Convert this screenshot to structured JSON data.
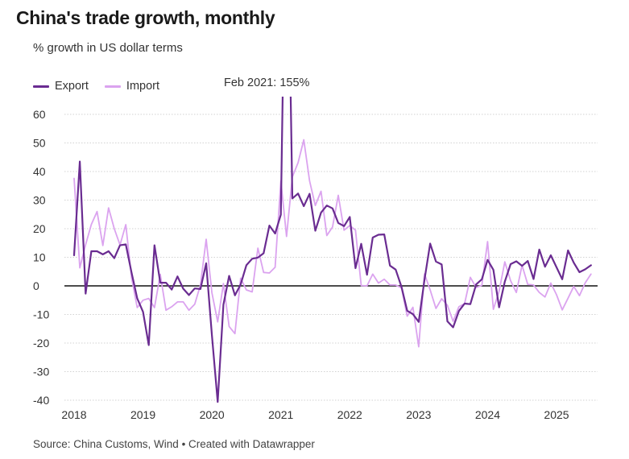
{
  "header": {
    "title": "China's trade growth, monthly",
    "subtitle": "% growth in US dollar terms"
  },
  "annotation": "Feb 2021: 155%",
  "footer": "Source: China Customs, Wind • Created with Datawrapper",
  "colors": {
    "export": "#6a2c91",
    "import": "#dba3ef",
    "grid": "#d2d2d2",
    "zero": "#111111"
  },
  "chart_data": {
    "type": "line",
    "title": "China's trade growth, monthly",
    "subtitle": "% growth in US dollar terms",
    "xlabel": "",
    "ylabel": "",
    "ylim": [
      -40,
      60
    ],
    "xlim": [
      "2018-01",
      "2025-12"
    ],
    "grid": true,
    "legend_position": "top-left",
    "y_ticks": [
      -40,
      -30,
      -20,
      -10,
      0,
      10,
      20,
      30,
      40,
      50,
      60
    ],
    "x_ticks": [
      "2018",
      "2019",
      "2020",
      "2021",
      "2022",
      "2023",
      "2024",
      "2025"
    ],
    "x_start": "2018-01",
    "x_step": "month",
    "series": [
      {
        "name": "Export",
        "values": [
          10.7,
          43.5,
          -2.7,
          12.1,
          12.1,
          11.0,
          12.1,
          9.7,
          14.2,
          14.5,
          4.7,
          -4.4,
          -9.1,
          -20.7,
          14.2,
          1.1,
          1.1,
          -1.3,
          3.3,
          -1.0,
          -3.2,
          -0.9,
          -1.1,
          7.9,
          -17.2,
          -40.6,
          -6.6,
          3.5,
          -3.3,
          0.5,
          7.2,
          9.5,
          9.9,
          11.4,
          21.1,
          18.3,
          24.9,
          154.9,
          30.6,
          32.3,
          27.9,
          32.2,
          19.3,
          25.6,
          28.1,
          27.1,
          22.0,
          20.9,
          24.1,
          6.2,
          14.7,
          3.9,
          16.9,
          17.9,
          18.0,
          7.1,
          5.7,
          -0.3,
          -8.7,
          -9.9,
          -12.6,
          2.0,
          14.8,
          8.5,
          7.5,
          -12.4,
          -14.5,
          -8.8,
          -6.2,
          -6.4,
          0.5,
          2.3,
          9.1,
          5.6,
          -7.5,
          1.5,
          7.6,
          8.6,
          7.0,
          8.7,
          2.4,
          12.7,
          6.7,
          10.7,
          6.5,
          2.3,
          12.4,
          8.1,
          4.8,
          5.8,
          7.2
        ]
      },
      {
        "name": "Import",
        "values": [
          37.6,
          6.3,
          14.4,
          21.5,
          26.0,
          14.1,
          27.3,
          20.0,
          14.3,
          21.4,
          3.0,
          -7.6,
          -5.0,
          -4.4,
          -7.6,
          4.0,
          -8.5,
          -7.3,
          -5.6,
          -5.6,
          -8.5,
          -6.4,
          0.3,
          16.3,
          -2.4,
          -12.6,
          0.8,
          -14.2,
          -16.7,
          2.7,
          -1.4,
          -2.1,
          13.2,
          4.7,
          4.5,
          6.5,
          36.7,
          17.3,
          38.1,
          43.1,
          51.1,
          36.7,
          28.1,
          33.1,
          17.6,
          20.6,
          31.7,
          19.5,
          21.1,
          19.5,
          0.1,
          0.0,
          4.1,
          1.0,
          2.3,
          0.3,
          0.3,
          -0.7,
          -10.6,
          -7.5,
          -21.3,
          4.2,
          -1.4,
          -7.9,
          -4.5,
          -6.8,
          -12.4,
          -7.3,
          -6.2,
          3.0,
          -0.6,
          0.2,
          15.5,
          -8.2,
          -1.9,
          8.4,
          1.8,
          -2.3,
          7.2,
          0.5,
          0.3,
          -2.3,
          -3.9,
          1.0,
          -3.1,
          -8.4,
          -4.3,
          -0.2,
          -3.4,
          1.1,
          4.1
        ]
      }
    ]
  }
}
